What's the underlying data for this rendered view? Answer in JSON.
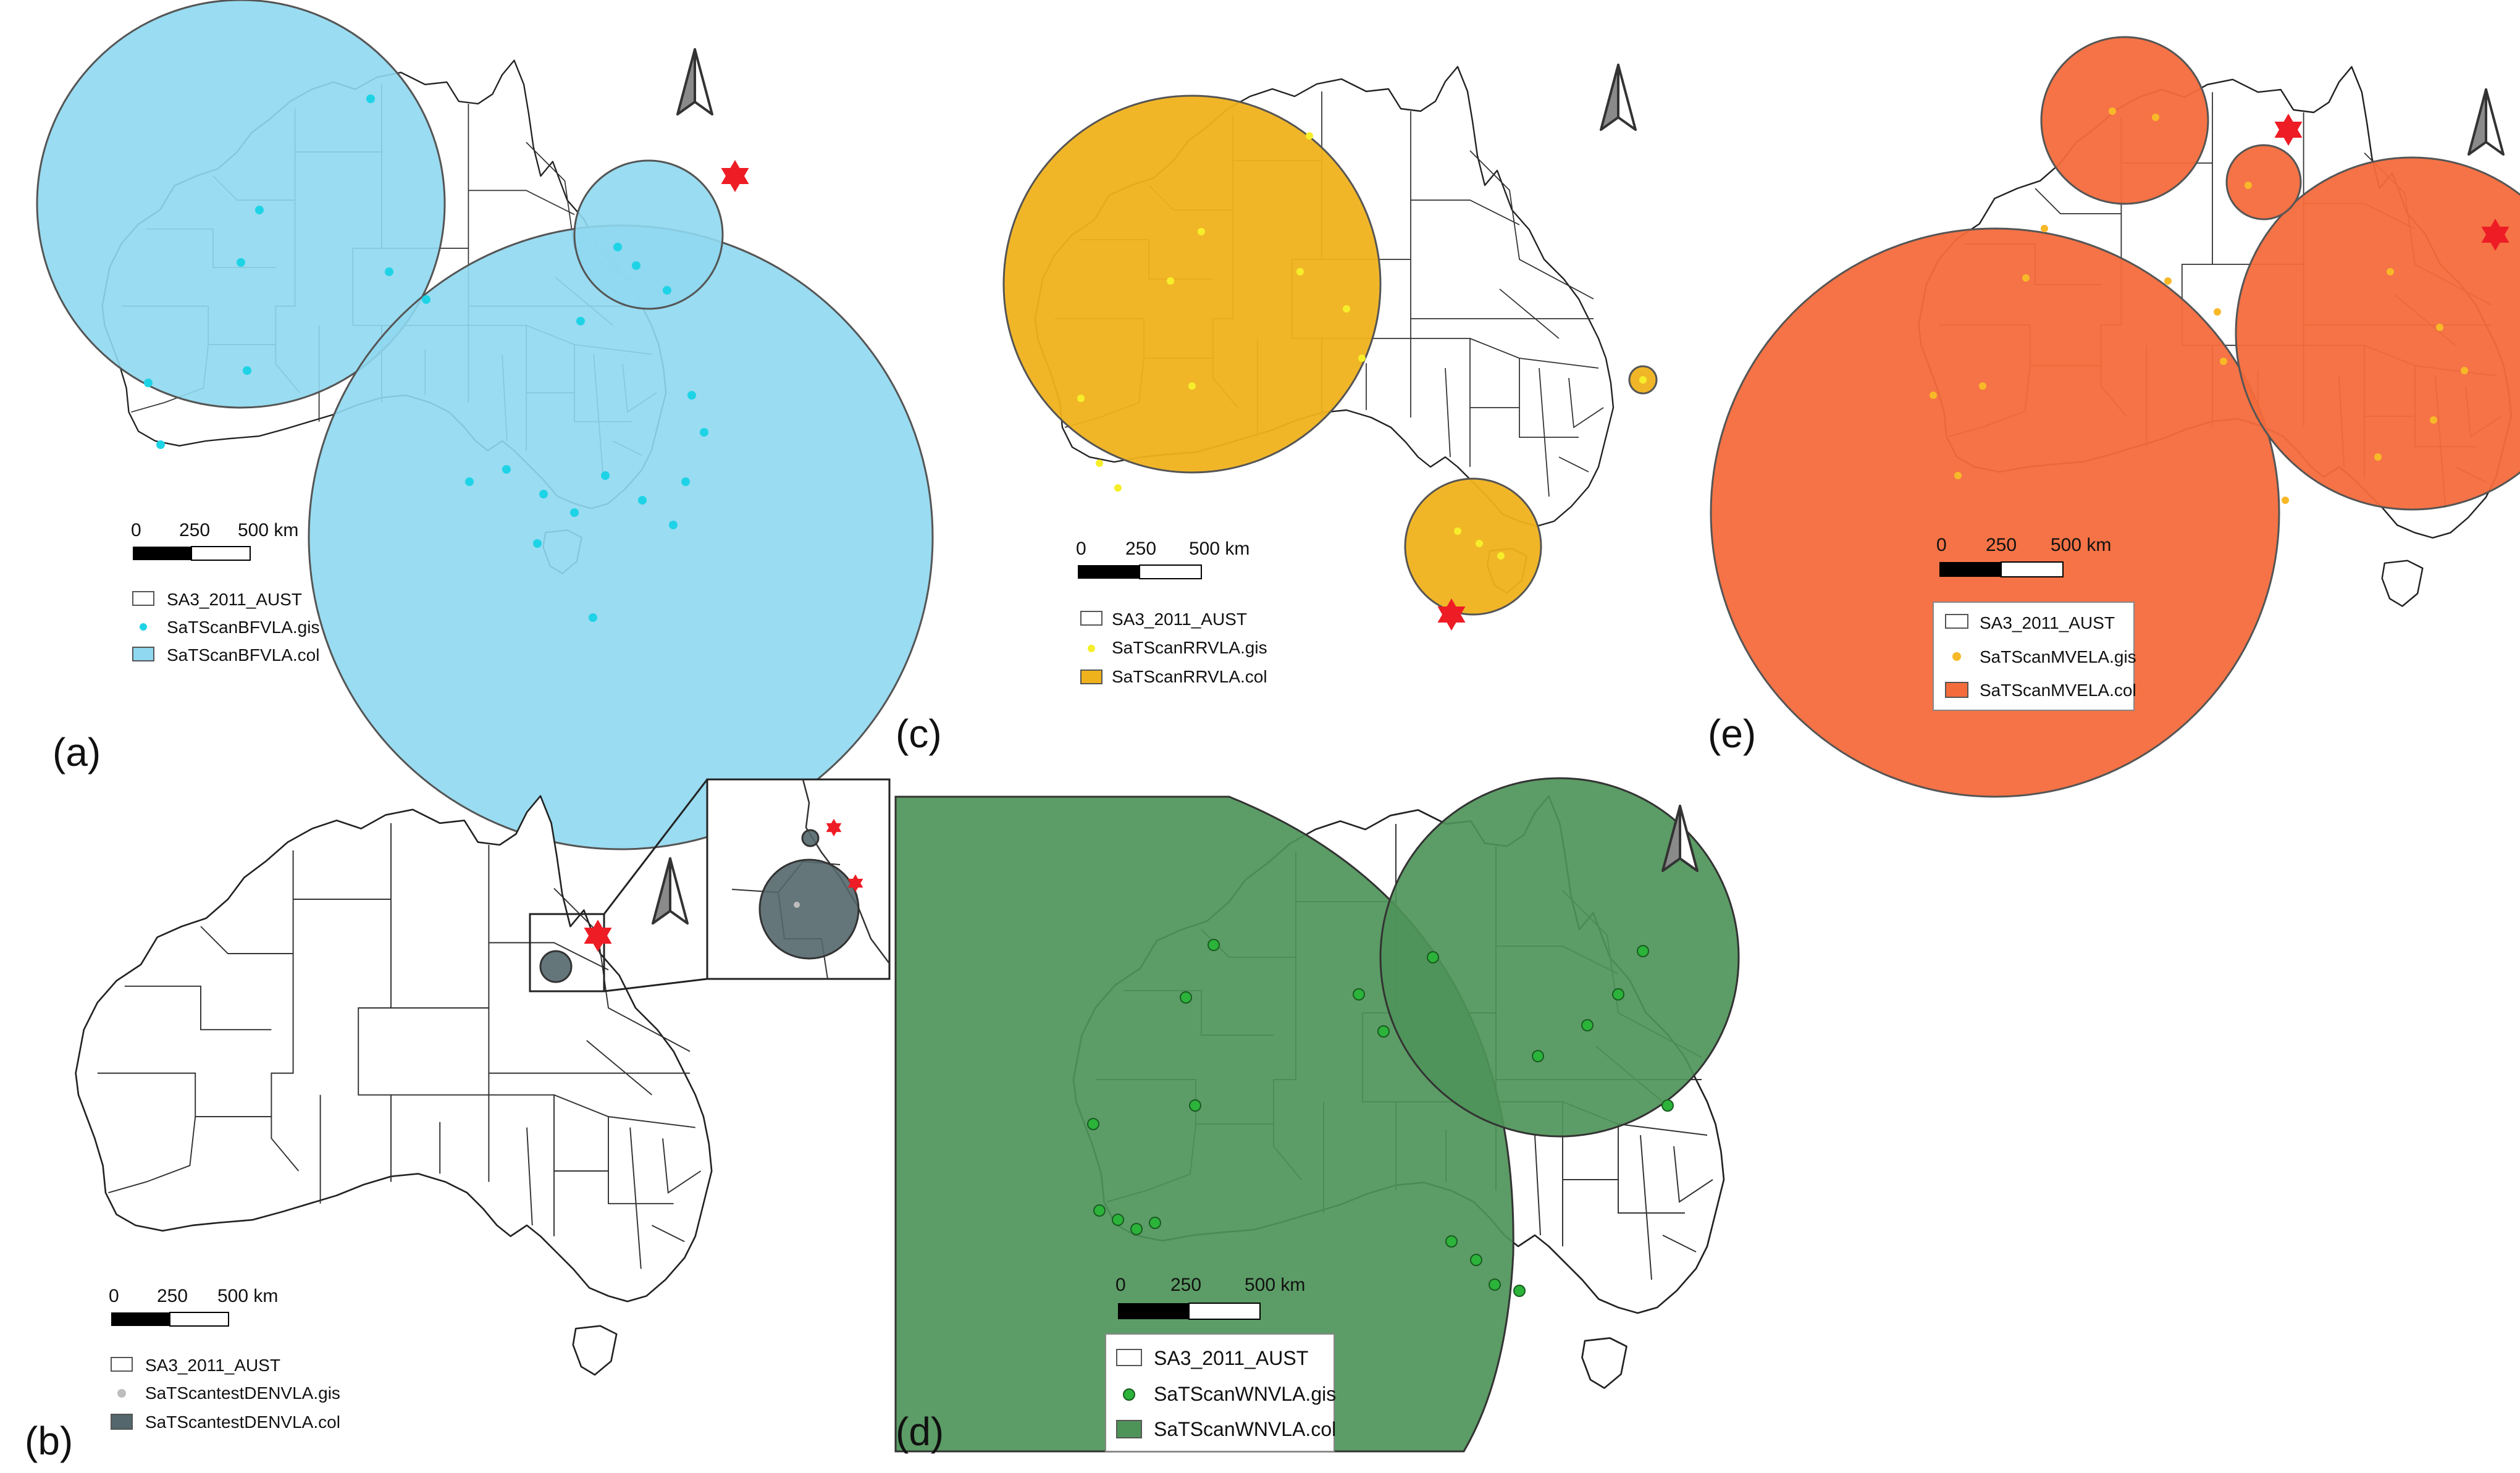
{
  "colors": {
    "blue_cluster": "#8fd8f0",
    "blue_point": "#1fd3e6",
    "gold_cluster": "#f0b21c",
    "gold_point": "#f6ee2a",
    "red_cluster": "#f46b3c",
    "red_point": "#f7b928",
    "green_cluster": "#4e9459",
    "green_point": "#2bb33a",
    "grey_cluster": "#53676c",
    "grey_point": "#bdbdbd",
    "star": "#ee1c25"
  },
  "panels": [
    {
      "id": "a",
      "label": "(a)",
      "scalebar": {
        "labels": [
          "0",
          "250",
          "500 km"
        ]
      },
      "legend": [
        {
          "symbol": "polygon",
          "text": "SA3_2011_AUST"
        },
        {
          "symbol": "point",
          "text": "SaTScanBFVLA.gis"
        },
        {
          "symbol": "cluster",
          "text": "SaTScanBFVLA.col"
        }
      ]
    },
    {
      "id": "b",
      "label": "(b)",
      "scalebar": {
        "labels": [
          "0",
          "250",
          "500 km"
        ]
      },
      "legend": [
        {
          "symbol": "polygon",
          "text": "SA3_2011_AUST"
        },
        {
          "symbol": "point",
          "text": "SaTScantestDENVLA.gis"
        },
        {
          "symbol": "cluster",
          "text": "SaTScantestDENVLA.col"
        }
      ]
    },
    {
      "id": "c",
      "label": "(c)",
      "scalebar": {
        "labels": [
          "0",
          "250",
          "500 km"
        ]
      },
      "legend": [
        {
          "symbol": "polygon",
          "text": "SA3_2011_AUST"
        },
        {
          "symbol": "point",
          "text": "SaTScanRRVLA.gis"
        },
        {
          "symbol": "cluster",
          "text": "SaTScanRRVLA.col"
        }
      ]
    },
    {
      "id": "d",
      "label": "(d)",
      "scalebar": {
        "labels": [
          "0",
          "250",
          "500 km"
        ]
      },
      "legend": [
        {
          "symbol": "polygon",
          "text": "SA3_2011_AUST"
        },
        {
          "symbol": "point",
          "text": "SaTScanWNVLA.gis"
        },
        {
          "symbol": "cluster",
          "text": "SaTScanWNVLA.col"
        }
      ]
    },
    {
      "id": "e",
      "label": "(e)",
      "scalebar": {
        "labels": [
          "0",
          "250",
          "500 km"
        ]
      },
      "legend": [
        {
          "symbol": "polygon",
          "text": "SA3_2011_AUST"
        },
        {
          "symbol": "point",
          "text": "SaTScanMVELA.gis"
        },
        {
          "symbol": "cluster",
          "text": "SaTScanMVELA.col"
        }
      ]
    }
  ]
}
